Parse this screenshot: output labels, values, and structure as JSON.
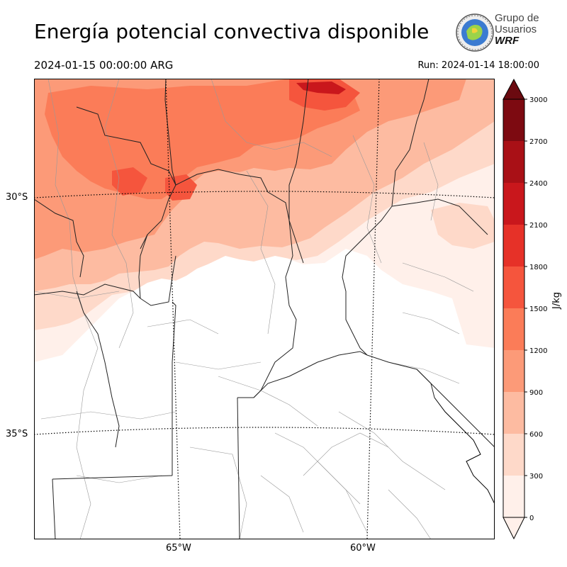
{
  "title": "Energía potencial convectiva disponible",
  "valid_time": "2024-01-15 00:00:00 ARG",
  "run_time": "Run: 2024-01-14 18:00:00",
  "logo": {
    "line1": "Grupo de",
    "line2": "Usuarios",
    "line3": "WRF"
  },
  "colorbar": {
    "unit": "J/kg",
    "ticks": [
      "3000",
      "2700",
      "2400",
      "2100",
      "1800",
      "1500",
      "1200",
      "900",
      "600",
      "300",
      "0"
    ],
    "colors": [
      "#fff0ea",
      "#fed9c9",
      "#fdbba1",
      "#fc9a78",
      "#fb7c58",
      "#f5553d",
      "#e63128",
      "#c9171c",
      "#a91016",
      "#7d0a11"
    ]
  },
  "axes": {
    "lat_labels": [
      "30°S",
      "35°S"
    ],
    "lon_labels": [
      "65°W",
      "60°W"
    ]
  }
}
